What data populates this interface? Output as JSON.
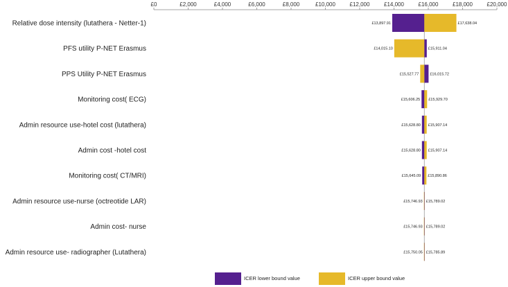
{
  "chart_data": {
    "type": "bar",
    "orientation": "horizontal-tornado",
    "xlim": [
      0,
      20000
    ],
    "x_ticks": [
      "£0",
      "£2,000",
      "£4,000",
      "£6,000",
      "£8,000",
      "£10,000",
      "£12,000",
      "£14,000",
      "£16,000",
      "£18,000",
      "£20,000"
    ],
    "x_tick_values": [
      0,
      2000,
      4000,
      6000,
      8000,
      10000,
      12000,
      14000,
      16000,
      18000,
      20000
    ],
    "base_value": 15768,
    "axis_position": "top",
    "grid": false,
    "legend_position": "bottom",
    "categories": [
      "Relative dose intensity (lutathera - Netter-1)",
      "PFS utility P-NET Erasmus",
      "PPS Utility  P-NET Erasmus",
      "Monitoring cost( ECG)",
      "Admin resource use-hotel cost (lutathera)",
      "Admin cost -hotel cost",
      "Monitoring cost( CT/MRI)",
      "Admin resource use-nurse (octreotide LAR)",
      "Admin cost- nurse",
      "Admin resource use- radiographer (Lutathera)"
    ],
    "series": [
      {
        "name": "ICER lower bound value",
        "color": "#55208f",
        "values": [
          13897.91,
          15911.04,
          16015.72,
          15606.25,
          15628.8,
          15628.8,
          15645.09,
          15789.02,
          15789.02,
          15785.89
        ],
        "labels": [
          "£13,897.91",
          "£15,911.04",
          "£16,015.72",
          "£15,606.25",
          "£15,628.80",
          "£15,628.80",
          "£15,645.09",
          "£15,789.02",
          "£15,789.02",
          "£15,785.89"
        ]
      },
      {
        "name": "ICER upper bound value",
        "color": "#e6b92a",
        "values": [
          17638.04,
          14015.1,
          15527.77,
          15929.7,
          15907.14,
          15907.14,
          15890.86,
          15746.93,
          15746.93,
          15750.05
        ],
        "labels": [
          "£17,638.04",
          "£14,015.10",
          "£15,527.77",
          "£15,929.70",
          "£15,907.14",
          "£15,907.14",
          "£15,890.86",
          "£15,746.93",
          "£15,746.93",
          "£15,750.05"
        ]
      }
    ]
  }
}
